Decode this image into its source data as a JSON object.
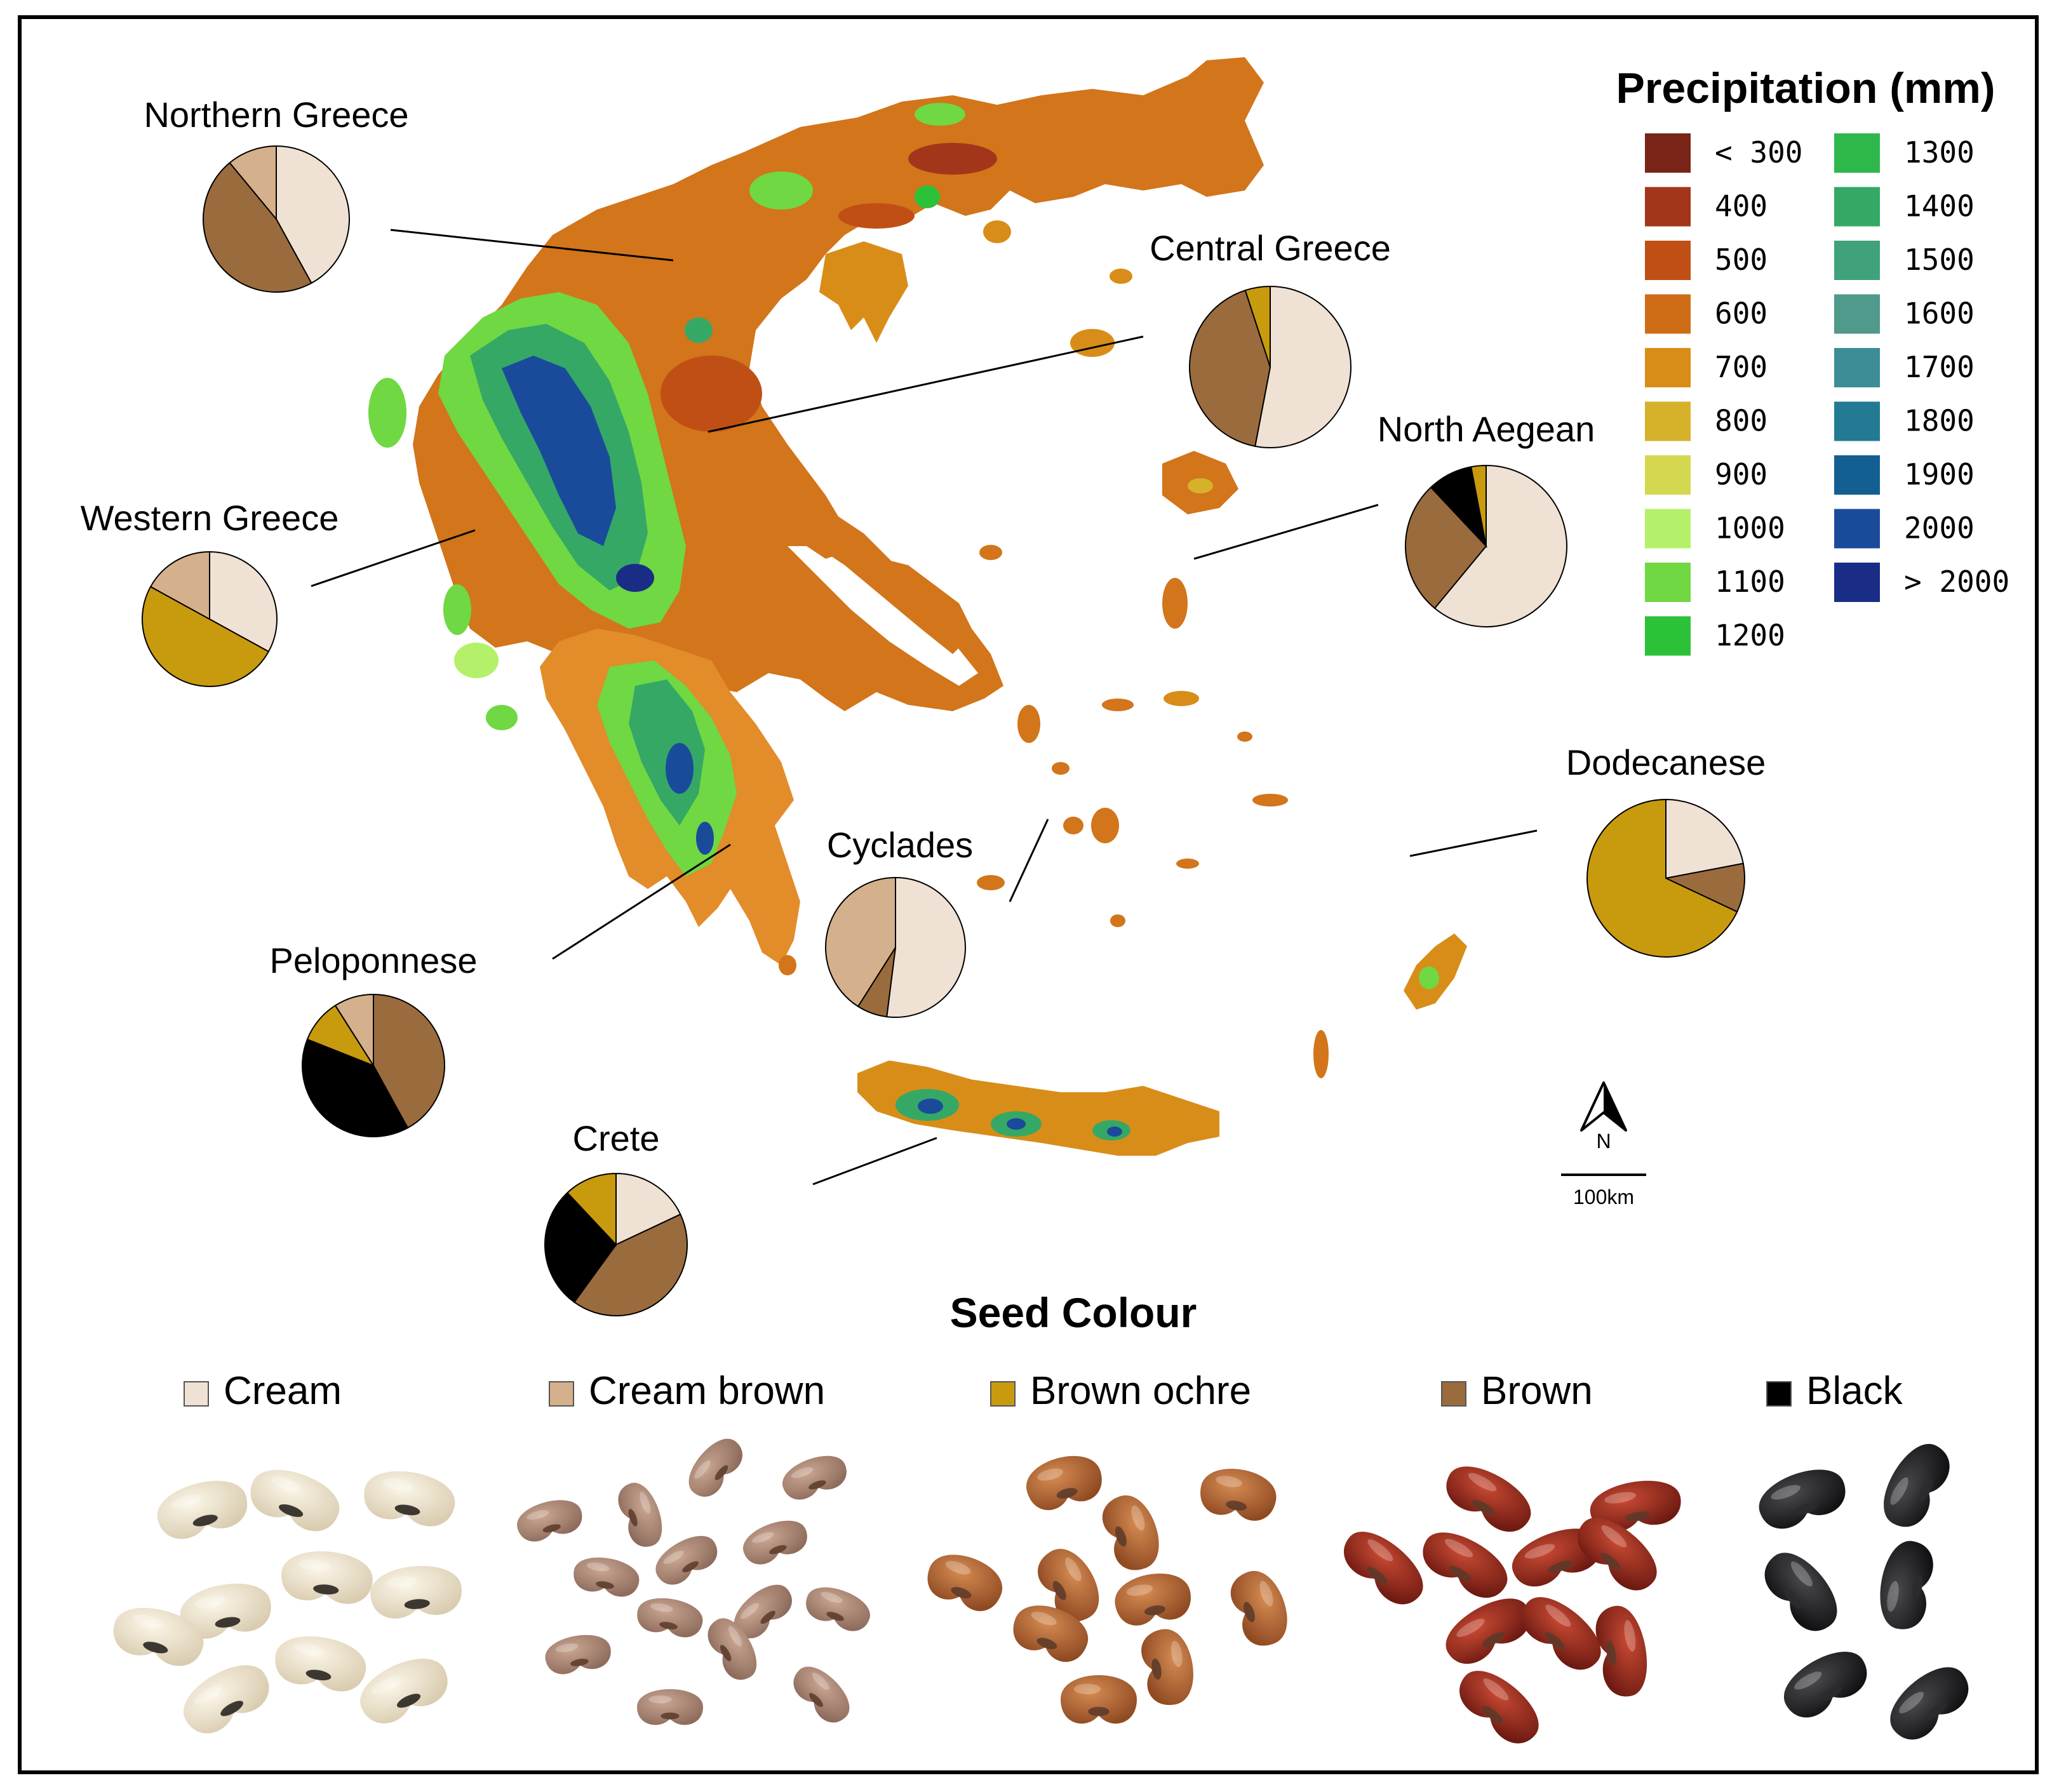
{
  "legend_precip": {
    "title": "Precipitation (mm)",
    "items": [
      {
        "label": "< 300",
        "color": "#7a2418"
      },
      {
        "label": "400",
        "color": "#a3361a"
      },
      {
        "label": "500",
        "color": "#c04f16"
      },
      {
        "label": "600",
        "color": "#cf6d17"
      },
      {
        "label": "700",
        "color": "#d88d19"
      },
      {
        "label": "800",
        "color": "#d5b22a"
      },
      {
        "label": "900",
        "color": "#d4d84e"
      },
      {
        "label": "1000",
        "color": "#b5f06a"
      },
      {
        "label": "1100",
        "color": "#6fd843"
      },
      {
        "label": "1200",
        "color": "#2cc237"
      },
      {
        "label": "1300",
        "color": "#2eb84c"
      },
      {
        "label": "1400",
        "color": "#35a866"
      },
      {
        "label": "1500",
        "color": "#3fa27a"
      },
      {
        "label": "1600",
        "color": "#4f9a8a"
      },
      {
        "label": "1700",
        "color": "#3c8d96"
      },
      {
        "label": "1800",
        "color": "#227a93"
      },
      {
        "label": "1900",
        "color": "#145f92"
      },
      {
        "label": "2000",
        "color": "#1a4b9b"
      },
      {
        "label": "> 2000",
        "color": "#1a2d86"
      }
    ]
  },
  "seed_colour": {
    "title": "Seed Colour",
    "items": [
      {
        "label": "Cream",
        "color": "#efe1d3"
      },
      {
        "label": "Cream brown",
        "color": "#d5b08c"
      },
      {
        "label": "Brown ochre",
        "color": "#c89a0e"
      },
      {
        "label": "Brown",
        "color": "#9a6b3d"
      },
      {
        "label": "Black",
        "color": "#000000"
      }
    ]
  },
  "regions": [
    {
      "name": "Northern Greece",
      "shares": [
        0.42,
        0.11,
        0.0,
        0.47,
        0.0
      ]
    },
    {
      "name": "Central Greece",
      "shares": [
        0.53,
        0.0,
        0.05,
        0.42,
        0.0
      ]
    },
    {
      "name": "North Aegean",
      "shares": [
        0.61,
        0.0,
        0.03,
        0.27,
        0.09
      ]
    },
    {
      "name": "Western Greece",
      "shares": [
        0.33,
        0.17,
        0.5,
        0.0,
        0.0
      ]
    },
    {
      "name": "Cyclades",
      "shares": [
        0.52,
        0.41,
        0.0,
        0.07,
        0.0
      ]
    },
    {
      "name": "Dodecanese",
      "shares": [
        0.22,
        0.0,
        0.68,
        0.1,
        0.0
      ]
    },
    {
      "name": "Peloponnese",
      "shares": [
        0.0,
        0.09,
        0.1,
        0.42,
        0.39
      ]
    },
    {
      "name": "Crete",
      "shares": [
        0.18,
        0.0,
        0.12,
        0.42,
        0.28
      ]
    }
  ],
  "compass": {
    "letter": "N"
  },
  "scale_bar": {
    "label": "100km"
  }
}
